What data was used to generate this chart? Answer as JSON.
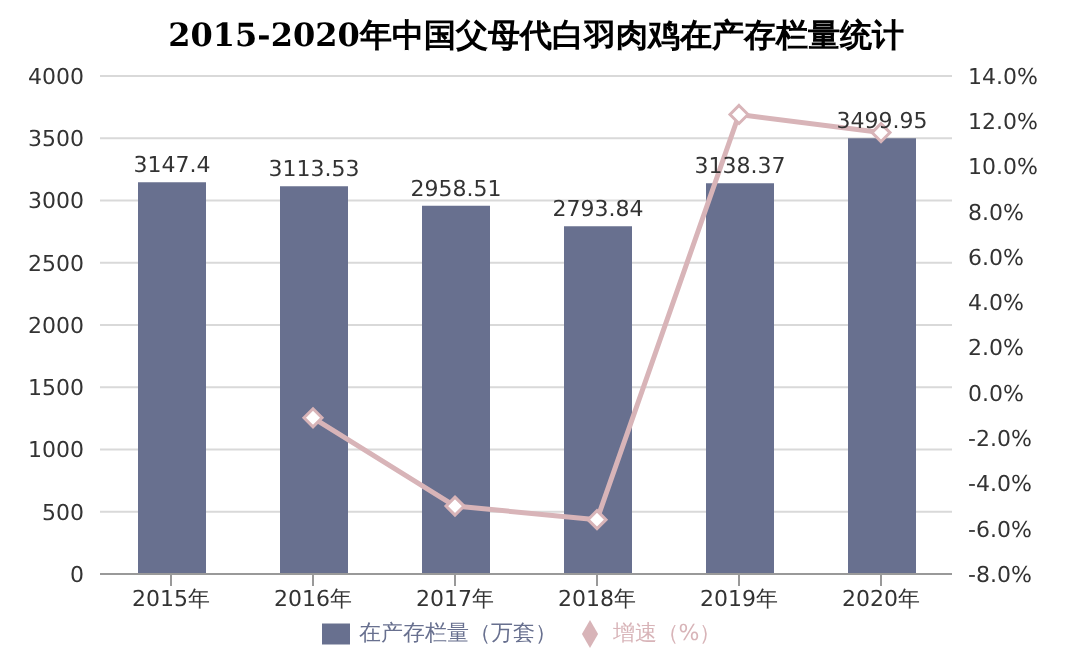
{
  "chart_data": {
    "type": "bar",
    "title": "2015-2020年中国父母代白羽肉鸡在产存栏量统计",
    "categories": [
      "2015年",
      "2016年",
      "2017年",
      "2018年",
      "2019年",
      "2020年"
    ],
    "series": [
      {
        "name": "在产存栏量（万套）",
        "color": "#68708f",
        "values": [
          3147.4,
          3113.53,
          2958.51,
          2793.84,
          3138.37,
          3499.95
        ],
        "value_labels": [
          "3147.4",
          "3113.53",
          "2958.51",
          "2793.84",
          "3138.37",
          "3499.95"
        ]
      },
      {
        "name": "增速（%）",
        "type": "line",
        "axis": "y2",
        "color": "#d8b4b8",
        "values": [
          null,
          -1.1,
          -5.0,
          -5.6,
          12.3,
          11.5
        ]
      }
    ],
    "ylim": [
      0,
      4000
    ],
    "yticks": [
      0,
      500,
      1000,
      1500,
      2000,
      2500,
      3000,
      3500,
      4000
    ],
    "y2lim": [
      -8,
      14
    ],
    "y2ticks": [
      {
        "value": -8,
        "label": "-8.0%"
      },
      {
        "value": -6,
        "label": "-6.0%"
      },
      {
        "value": -4,
        "label": "-4.0%"
      },
      {
        "value": -2,
        "label": "-2.0%"
      },
      {
        "value": 0,
        "label": "0.0%"
      },
      {
        "value": 2,
        "label": "2.0%"
      },
      {
        "value": 4,
        "label": "4.0%"
      },
      {
        "value": 6,
        "label": "6.0%"
      },
      {
        "value": 8,
        "label": "8.0%"
      },
      {
        "value": 10,
        "label": "10.0%"
      },
      {
        "value": 12,
        "label": "12.0%"
      },
      {
        "value": 14,
        "label": "14.0%"
      }
    ],
    "grid": "y",
    "legend": "bottom",
    "marker": "diamond"
  }
}
